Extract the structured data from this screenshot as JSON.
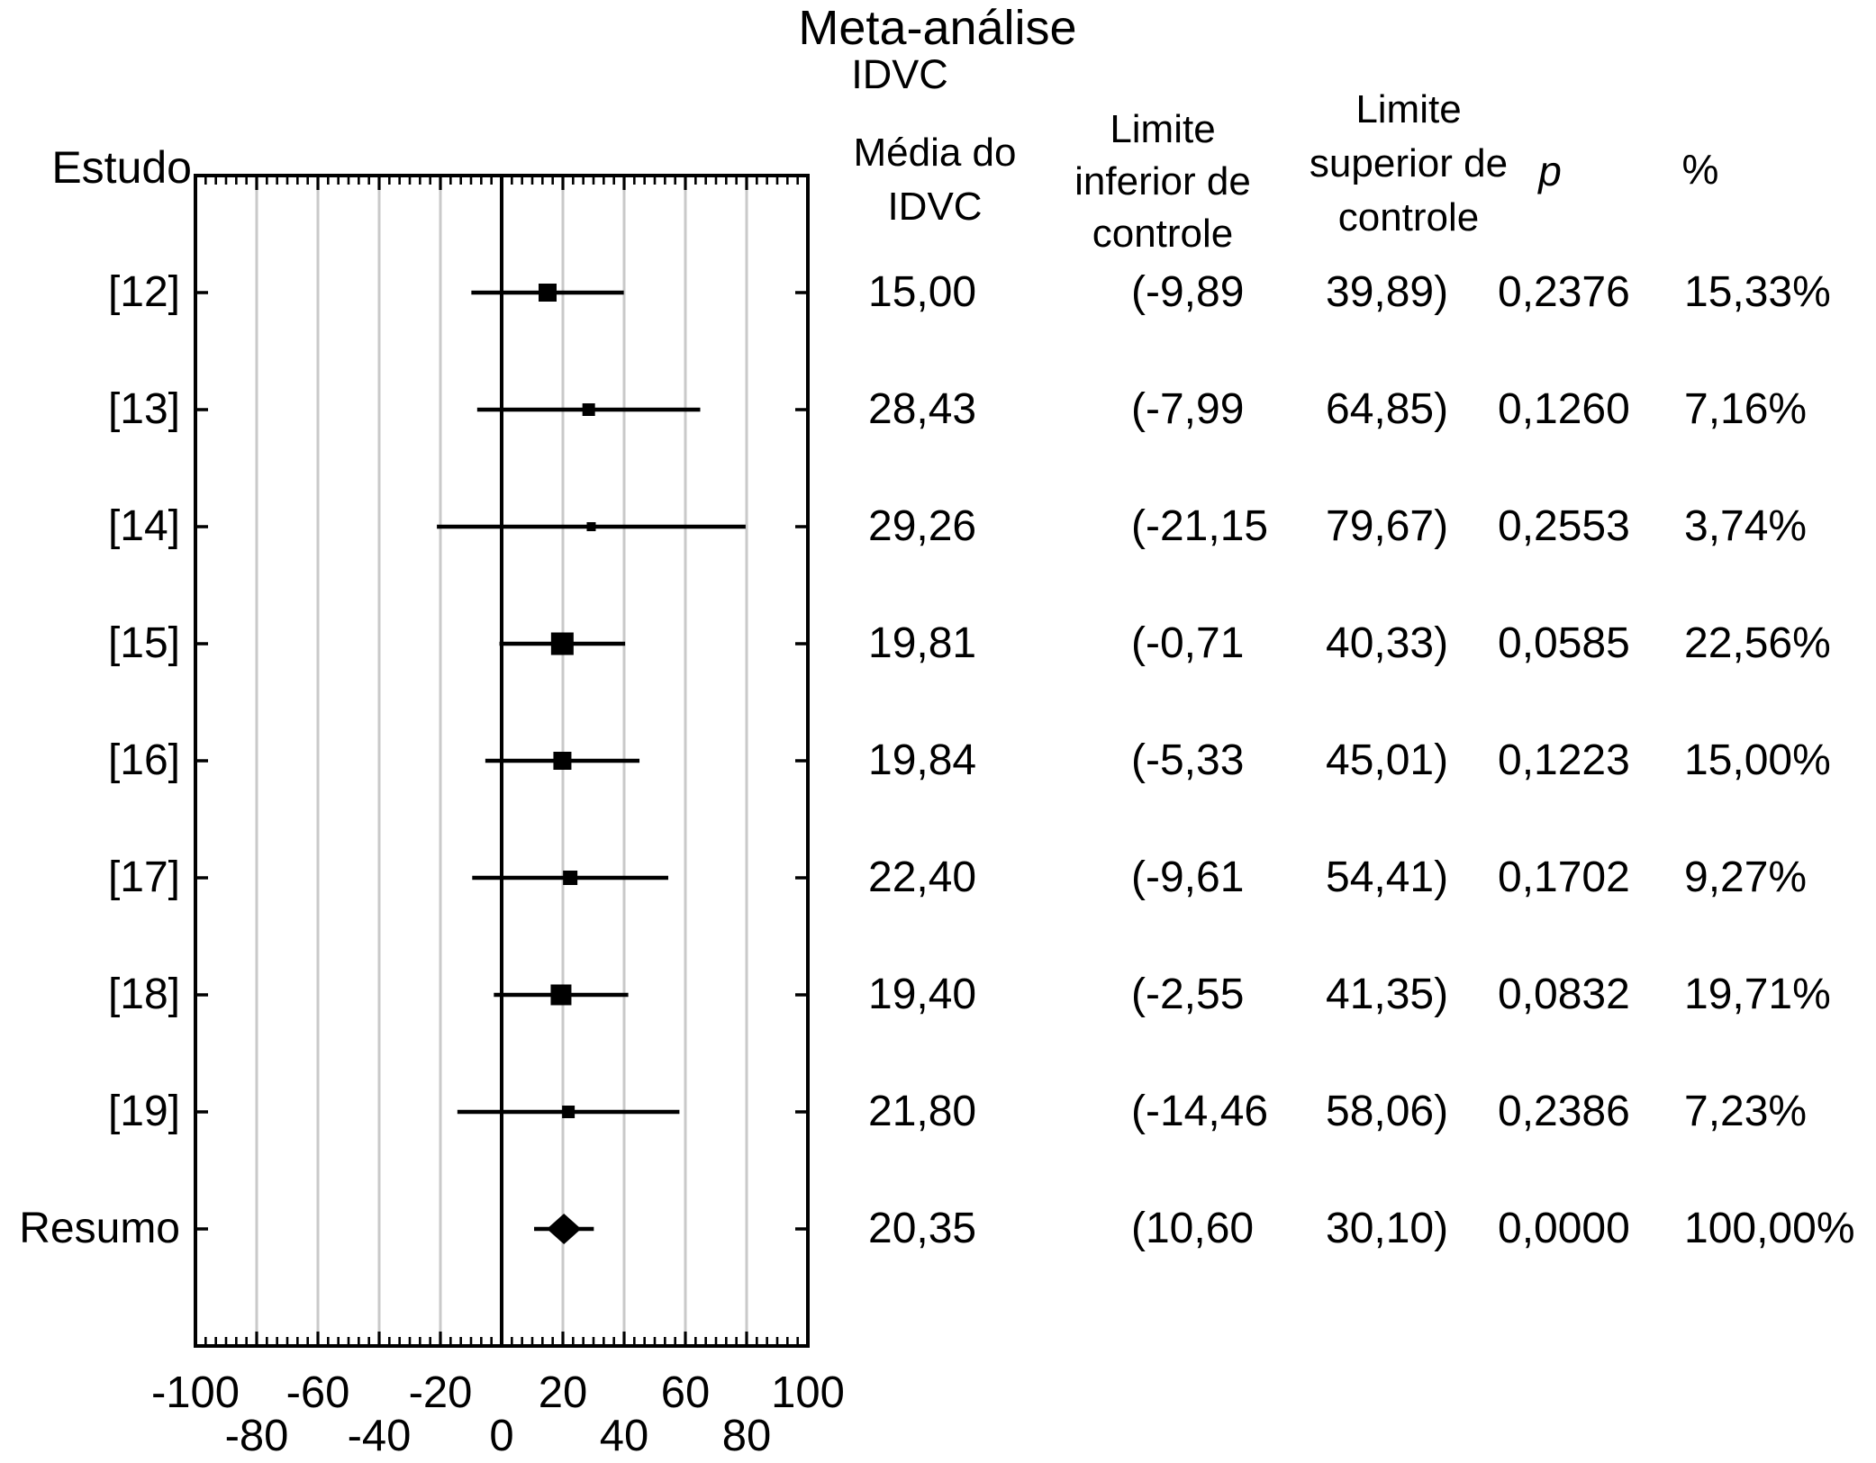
{
  "title": "Meta-análise",
  "subtitle": "IDVC",
  "axis_left_label": "Estudo",
  "columns": {
    "mean": [
      "Média do",
      "IDVC"
    ],
    "ci_low": [
      "Limite",
      "inferior de",
      "controle"
    ],
    "ci_high": [
      "Limite",
      "superior de",
      "controle"
    ],
    "p": "p",
    "pct": "%"
  },
  "colors": {
    "ink": "#000000",
    "gridline": "#c9c9c9",
    "background": "#ffffff"
  },
  "chart_data": {
    "type": "forest",
    "title": "Meta-análise",
    "subtitle": "IDVC",
    "xlabel": "",
    "ylabel": "Estudo",
    "xlim": [
      -100,
      100
    ],
    "grid": true,
    "x_axis": {
      "min": -100,
      "max": 100,
      "major_step": 20,
      "minor_per_major": 6,
      "ticks": [
        {
          "v": -100,
          "text": "-100",
          "row": 0
        },
        {
          "v": -80,
          "text": "-80",
          "row": 1
        },
        {
          "v": -60,
          "text": "-60",
          "row": 0
        },
        {
          "v": -40,
          "text": "-40",
          "row": 1
        },
        {
          "v": -20,
          "text": "-20",
          "row": 0
        },
        {
          "v": 0,
          "text": "0",
          "row": 1
        },
        {
          "v": 20,
          "text": "20",
          "row": 0
        },
        {
          "v": 40,
          "text": "40",
          "row": 1
        },
        {
          "v": 60,
          "text": "60",
          "row": 0
        },
        {
          "v": 80,
          "text": "80",
          "row": 1
        },
        {
          "v": 100,
          "text": "100",
          "row": 0
        }
      ]
    },
    "rows": [
      {
        "label": "[12]",
        "marker": "square",
        "mean": 15.0,
        "ci_low": -9.89,
        "ci_high": 39.89,
        "p": 0.2376,
        "weight_pct": 15.33,
        "mean_text": "15,00",
        "ci_low_text": "(-9,89",
        "ci_high_text": "39,89)",
        "p_text": "0,2376",
        "pct_text": "15,33%"
      },
      {
        "label": "[13]",
        "marker": "square",
        "mean": 28.43,
        "ci_low": -7.99,
        "ci_high": 64.85,
        "p": 0.126,
        "weight_pct": 7.16,
        "mean_text": "28,43",
        "ci_low_text": "(-7,99",
        "ci_high_text": "64,85)",
        "p_text": "0,1260",
        "pct_text": "7,16%"
      },
      {
        "label": "[14]",
        "marker": "square",
        "mean": 29.26,
        "ci_low": -21.15,
        "ci_high": 79.67,
        "p": 0.2553,
        "weight_pct": 3.74,
        "mean_text": "29,26",
        "ci_low_text": "(-21,15",
        "ci_high_text": "79,67)",
        "p_text": "0,2553",
        "pct_text": "3,74%"
      },
      {
        "label": "[15]",
        "marker": "square",
        "mean": 19.81,
        "ci_low": -0.71,
        "ci_high": 40.33,
        "p": 0.0585,
        "weight_pct": 22.56,
        "mean_text": "19,81",
        "ci_low_text": "(-0,71",
        "ci_high_text": "40,33)",
        "p_text": "0,0585",
        "pct_text": "22,56%"
      },
      {
        "label": "[16]",
        "marker": "square",
        "mean": 19.84,
        "ci_low": -5.33,
        "ci_high": 45.01,
        "p": 0.1223,
        "weight_pct": 15.0,
        "mean_text": "19,84",
        "ci_low_text": "(-5,33",
        "ci_high_text": "45,01)",
        "p_text": "0,1223",
        "pct_text": "15,00%"
      },
      {
        "label": "[17]",
        "marker": "square",
        "mean": 22.4,
        "ci_low": -9.61,
        "ci_high": 54.41,
        "p": 0.1702,
        "weight_pct": 9.27,
        "mean_text": "22,40",
        "ci_low_text": "(-9,61",
        "ci_high_text": "54,41)",
        "p_text": "0,1702",
        "pct_text": "9,27%"
      },
      {
        "label": "[18]",
        "marker": "square",
        "mean": 19.4,
        "ci_low": -2.55,
        "ci_high": 41.35,
        "p": 0.0832,
        "weight_pct": 19.71,
        "mean_text": "19,40",
        "ci_low_text": "(-2,55",
        "ci_high_text": "41,35)",
        "p_text": "0,0832",
        "pct_text": "19,71%"
      },
      {
        "label": "[19]",
        "marker": "square",
        "mean": 21.8,
        "ci_low": -14.46,
        "ci_high": 58.06,
        "p": 0.2386,
        "weight_pct": 7.23,
        "mean_text": "21,80",
        "ci_low_text": "(-14,46",
        "ci_high_text": "58,06)",
        "p_text": "0,2386",
        "pct_text": "7,23%"
      },
      {
        "label": "Resumo",
        "marker": "diamond",
        "mean": 20.35,
        "ci_low": 10.6,
        "ci_high": 30.1,
        "p": 0.0,
        "weight_pct": 100.0,
        "mean_text": "20,35",
        "ci_low_text": "(10,60",
        "ci_high_text": "30,10)",
        "p_text": "0,0000",
        "pct_text": "100,00%"
      }
    ]
  }
}
